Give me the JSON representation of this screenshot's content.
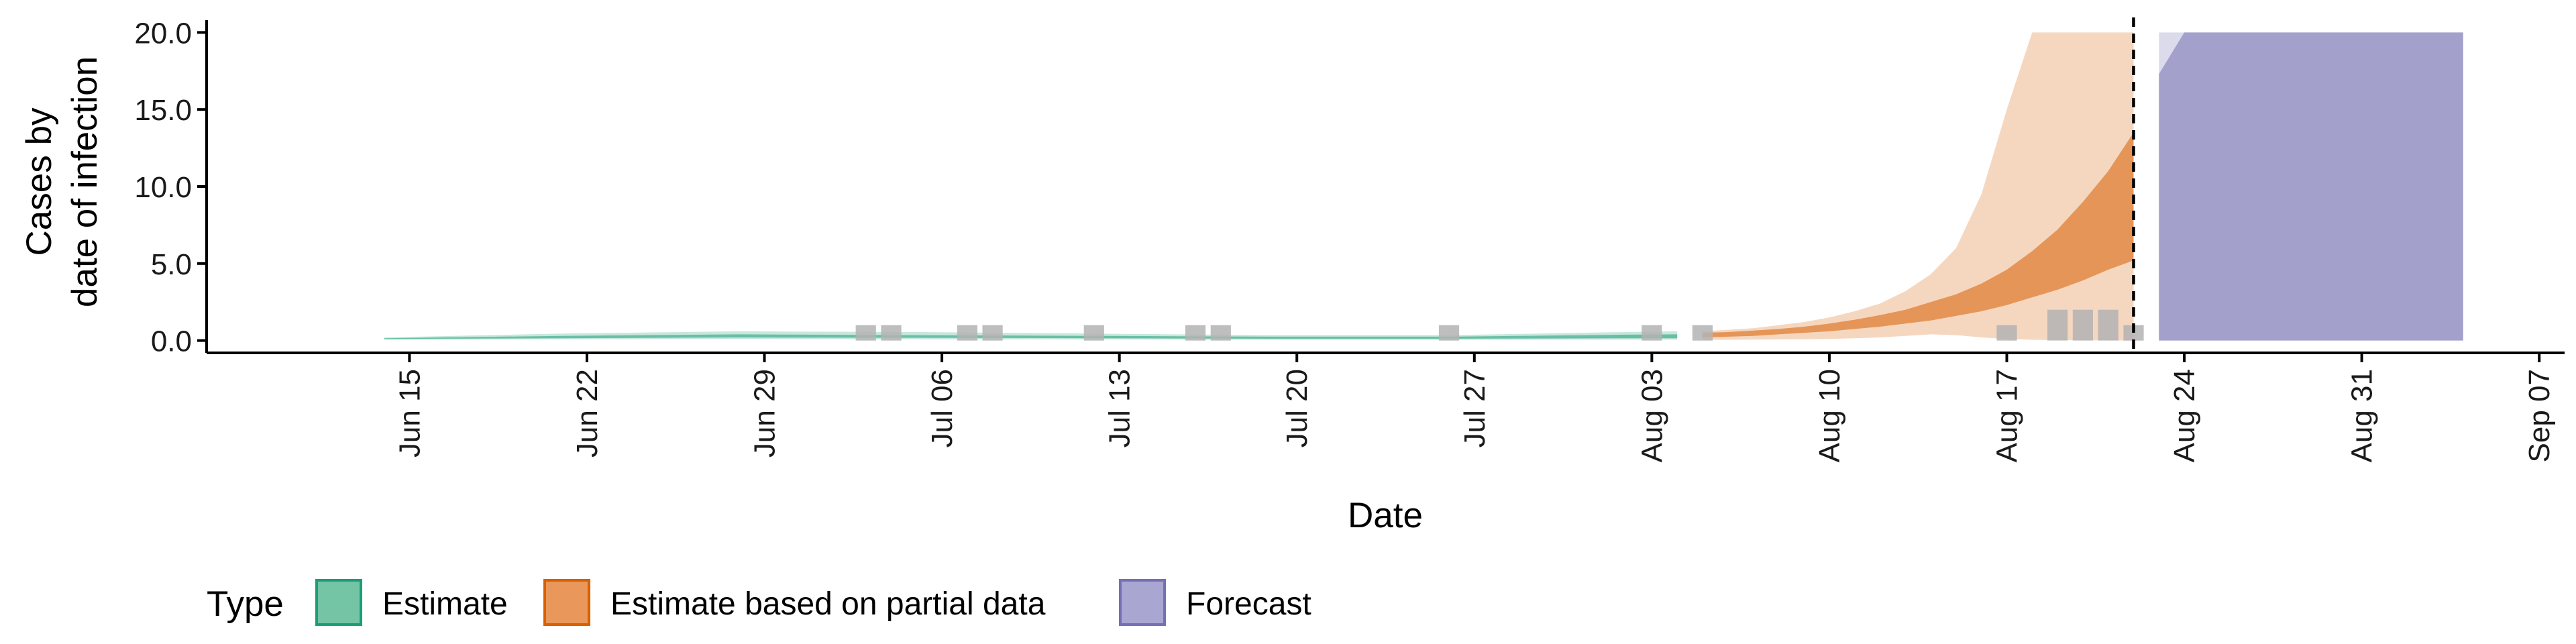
{
  "chart_data": {
    "type": "area",
    "title": "",
    "xlabel": "Date",
    "ylabel_lines": [
      "Cases by",
      "date of infection"
    ],
    "x_axis": {
      "range": [
        "2021-06-07",
        "2021-09-08"
      ],
      "ticks": [
        "2021-06-15",
        "2021-06-22",
        "2021-06-29",
        "2021-07-06",
        "2021-07-13",
        "2021-07-20",
        "2021-07-27",
        "2021-08-03",
        "2021-08-10",
        "2021-08-17",
        "2021-08-24",
        "2021-08-31",
        "2021-09-07"
      ],
      "tick_labels": [
        "Jun 15",
        "Jun 22",
        "Jun 29",
        "Jul 06",
        "Jul 13",
        "Jul 20",
        "Jul 27",
        "Aug 03",
        "Aug 10",
        "Aug 17",
        "Aug 24",
        "Aug 31",
        "Sep 07"
      ]
    },
    "y_axis": {
      "range": [
        -0.8,
        20.8
      ],
      "ticks": [
        0,
        5,
        10,
        15,
        20
      ],
      "tick_labels": [
        "0.0",
        "5.0",
        "10.0",
        "15.0",
        "20.0"
      ]
    },
    "legend": {
      "title": "Type",
      "position": "bottom",
      "items": [
        {
          "label": "Estimate",
          "fill": "#74c4a6",
          "border": "#1b9e77"
        },
        {
          "label": "Estimate based on partial data",
          "fill": "#e9975a",
          "border": "#d95f02"
        },
        {
          "label": "Forecast",
          "fill": "#a9a6d2",
          "border": "#7570b3"
        }
      ]
    },
    "series": [
      {
        "name": "Estimate",
        "color": "#1b9e77",
        "x": [
          "2021-06-14",
          "2021-06-21",
          "2021-06-28",
          "2021-07-05",
          "2021-07-12",
          "2021-07-19",
          "2021-07-26",
          "2021-08-02",
          "2021-08-04"
        ],
        "outer_lower": [
          0.05,
          0.08,
          0.1,
          0.08,
          0.07,
          0.05,
          0.05,
          0.06,
          0.06
        ],
        "outer_upper": [
          0.2,
          0.45,
          0.6,
          0.55,
          0.45,
          0.35,
          0.35,
          0.55,
          0.6
        ],
        "inner_lower": [
          0.1,
          0.15,
          0.2,
          0.18,
          0.15,
          0.12,
          0.12,
          0.15,
          0.15
        ],
        "inner_upper": [
          0.15,
          0.3,
          0.4,
          0.35,
          0.3,
          0.25,
          0.25,
          0.38,
          0.4
        ]
      },
      {
        "name": "Estimate based on partial data",
        "color": "#d95f02",
        "x": [
          "2021-08-05",
          "2021-08-06",
          "2021-08-07",
          "2021-08-08",
          "2021-08-09",
          "2021-08-10",
          "2021-08-11",
          "2021-08-12",
          "2021-08-13",
          "2021-08-14",
          "2021-08-15",
          "2021-08-16",
          "2021-08-17",
          "2021-08-18",
          "2021-08-19",
          "2021-08-20",
          "2021-08-21",
          "2021-08-22"
        ],
        "outer_lower": [
          0.05,
          0.05,
          0.06,
          0.07,
          0.08,
          0.1,
          0.15,
          0.2,
          0.3,
          0.4,
          0.35,
          0.2,
          0.1,
          0.05,
          0.03,
          0.02,
          0.01,
          0.0
        ],
        "outer_upper": [
          0.6,
          0.7,
          0.8,
          1.0,
          1.2,
          1.5,
          1.9,
          2.4,
          3.2,
          4.3,
          6.0,
          9.5,
          15.0,
          20.0,
          20.0,
          20.0,
          20.0,
          20.0
        ],
        "inner_lower": [
          0.2,
          0.25,
          0.3,
          0.4,
          0.5,
          0.6,
          0.75,
          0.9,
          1.1,
          1.3,
          1.6,
          1.9,
          2.3,
          2.8,
          3.3,
          3.9,
          4.6,
          5.2
        ],
        "inner_upper": [
          0.5,
          0.55,
          0.65,
          0.75,
          0.9,
          1.1,
          1.35,
          1.65,
          2.0,
          2.5,
          3.0,
          3.7,
          4.6,
          5.8,
          7.2,
          9.0,
          11.0,
          13.5
        ]
      },
      {
        "name": "Forecast",
        "color": "#7570b3",
        "x": [
          "2021-08-23",
          "2021-08-24",
          "2021-08-26",
          "2021-09-02",
          "2021-09-04"
        ],
        "outer_lower": [
          0,
          0,
          0,
          0,
          0
        ],
        "outer_upper": [
          20.0,
          20.0,
          20.0,
          20.0,
          20.0
        ],
        "inner_lower": [
          0,
          0,
          0,
          0,
          0
        ],
        "inner_upper": [
          17.3,
          20.0,
          20.0,
          20.0,
          20.0
        ]
      }
    ],
    "reported_cases": {
      "color": "#b3b3b3",
      "x": [
        "2021-07-03",
        "2021-07-04",
        "2021-07-07",
        "2021-07-08",
        "2021-07-12",
        "2021-07-16",
        "2021-07-17",
        "2021-07-26",
        "2021-08-03",
        "2021-08-05",
        "2021-08-17",
        "2021-08-19",
        "2021-08-20",
        "2021-08-21",
        "2021-08-22"
      ],
      "y": [
        1,
        1,
        1,
        1,
        1,
        1,
        1,
        1,
        1,
        1,
        1,
        2,
        2,
        2,
        1
      ]
    },
    "vline_date": "2021-08-22"
  }
}
